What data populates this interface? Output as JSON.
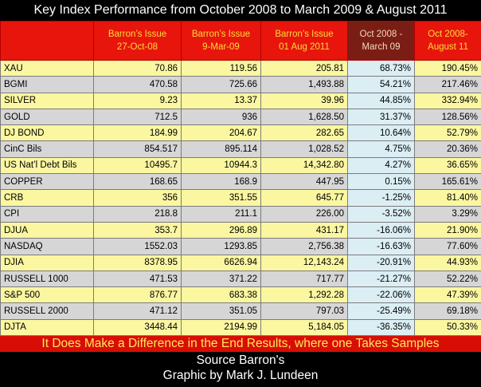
{
  "title": "Key Index Performance from October 2008 to March 2009 & August 2011",
  "chart_data": {
    "type": "table",
    "columns": [
      {
        "line1": "",
        "line2": ""
      },
      {
        "line1": "Barron’s Issue",
        "line2": "27-Oct-08"
      },
      {
        "line1": "Barron’s Issue",
        "line2": "9-Mar-09"
      },
      {
        "line1": "Barron’s Issue",
        "line2": "01 Aug 2011"
      },
      {
        "line1": "Oct 2008 -",
        "line2": "March 09"
      },
      {
        "line1": "Oct 2008-",
        "line2": "August 11"
      }
    ],
    "rows": [
      [
        "XAU",
        "70.86",
        "119.56",
        "205.81",
        "68.73%",
        "190.45%"
      ],
      [
        "BGMI",
        "470.58",
        "725.66",
        "1,493.88",
        "54.21%",
        "217.46%"
      ],
      [
        "SILVER",
        "9.23",
        "13.37",
        "39.96",
        "44.85%",
        "332.94%"
      ],
      [
        "GOLD",
        "712.5",
        "936",
        "1,628.50",
        "31.37%",
        "128.56%"
      ],
      [
        "DJ BOND",
        "184.99",
        "204.67",
        "282.65",
        "10.64%",
        "52.79%"
      ],
      [
        "CinC Bils",
        "854.517",
        "895.114",
        "1,028.52",
        "4.75%",
        "20.36%"
      ],
      [
        "US Nat’l Debt Bils",
        "10495.7",
        "10944.3",
        "14,342.80",
        "4.27%",
        "36.65%"
      ],
      [
        "COPPER",
        "168.65",
        "168.9",
        "447.95",
        "0.15%",
        "165.61%"
      ],
      [
        "CRB",
        "356",
        "351.55",
        "645.77",
        "-1.25%",
        "81.40%"
      ],
      [
        "CPI",
        "218.8",
        "211.1",
        "226.00",
        "-3.52%",
        "3.29%"
      ],
      [
        "DJUA",
        "353.7",
        "296.89",
        "431.17",
        "-16.06%",
        "21.90%"
      ],
      [
        "NASDAQ",
        "1552.03",
        "1293.85",
        "2,756.38",
        "-16.63%",
        "77.60%"
      ],
      [
        "DJIA",
        "8378.95",
        "6626.94",
        "12,143.24",
        "-20.91%",
        "44.93%"
      ],
      [
        "RUSSELL 1000",
        "471.53",
        "371.22",
        "717.77",
        "-21.27%",
        "52.22%"
      ],
      [
        "S&P 500",
        "876.77",
        "683.38",
        "1,292.28",
        "-22.06%",
        "47.39%"
      ],
      [
        "RUSSELL 2000",
        "471.12",
        "351.05",
        "797.03",
        "-25.49%",
        "69.18%"
      ],
      [
        "DJTA",
        "3448.44",
        "2194.99",
        "5,184.05",
        "-36.35%",
        "50.33%"
      ]
    ]
  },
  "footer": {
    "note": "It Does Make a Difference in the End Results, where one  Takes Samples",
    "source": "Source Barron's",
    "credit": "Graphic by Mark J. Lundeen"
  },
  "colors": {
    "header_bg": "#e8150c",
    "header_text": "#f7dd3c",
    "highlight_header_bg": "#7a1e15",
    "row_yellow": "#fbf7a1",
    "row_gray": "#d6d6d6",
    "pct_column_bg": "#dbeef4",
    "note_bg": "#d80e06"
  }
}
